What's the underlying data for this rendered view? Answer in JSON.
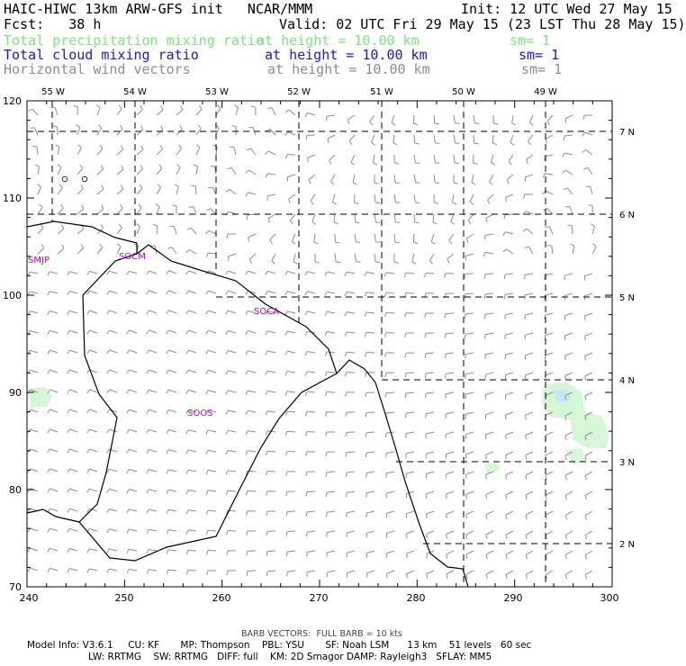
{
  "header": {
    "model_title": "HAIC-HIWC 13km ARW-GFS init   NCAR/MMM",
    "init": "Init: 12 UTC Wed 27 May 15",
    "fcst": "Fcst:   38 h",
    "valid": "Valid: 02 UTC Fri 29 May 15 (23 LST Thu 28 May 15)",
    "fields": [
      {
        "name": "Total precipitation mixing ratio",
        "level": "at height = 10.00 km",
        "sm": "sm= 1",
        "color": "#7fe07f"
      },
      {
        "name": "Total cloud mixing ratio",
        "level": "at height = 10.00 km",
        "sm": "sm= 1",
        "color": "#1818c8"
      },
      {
        "name": "Horizontal wind vectors",
        "level": "at height = 10.00 km",
        "sm": "sm= 1",
        "color": "#8c8c8c"
      }
    ]
  },
  "map": {
    "x_ticks": [
      "240",
      "250",
      "260",
      "270",
      "280",
      "290",
      "300"
    ],
    "y_ticks": [
      "70",
      "80",
      "90",
      "100",
      "110",
      "120"
    ],
    "lon_labels": [
      "55 W",
      "54 W",
      "53 W",
      "52 W",
      "51 W",
      "50 W",
      "49 W"
    ],
    "lat_labels": [
      "7 N",
      "6 N",
      "5 N",
      "4 N",
      "3 N",
      "2 N"
    ],
    "stations": [
      "SMJP",
      "SOCM",
      "SOCA",
      "SOOS"
    ],
    "x_range": [
      240,
      300
    ],
    "y_range": [
      70,
      120
    ],
    "precip_color": "#d6f7d6",
    "cloud_color": "#c8e4f7",
    "station_color": "#c000c0"
  },
  "footer": {
    "barb_note": "BARB VECTORS:  FULL BARB = 10 kts",
    "model_info_1": "Model Info: V3.6.1     CU: KF       MP: Thompson    PBL: YSU       SF: Noah LSM      13 km    51 levels   60 sec",
    "model_info_2": "LW: RRTMG    SW: RRTMG   DIFF: full    KM: 2D Smagor DAMP: Rayleigh3   SFLAY: MM5"
  }
}
